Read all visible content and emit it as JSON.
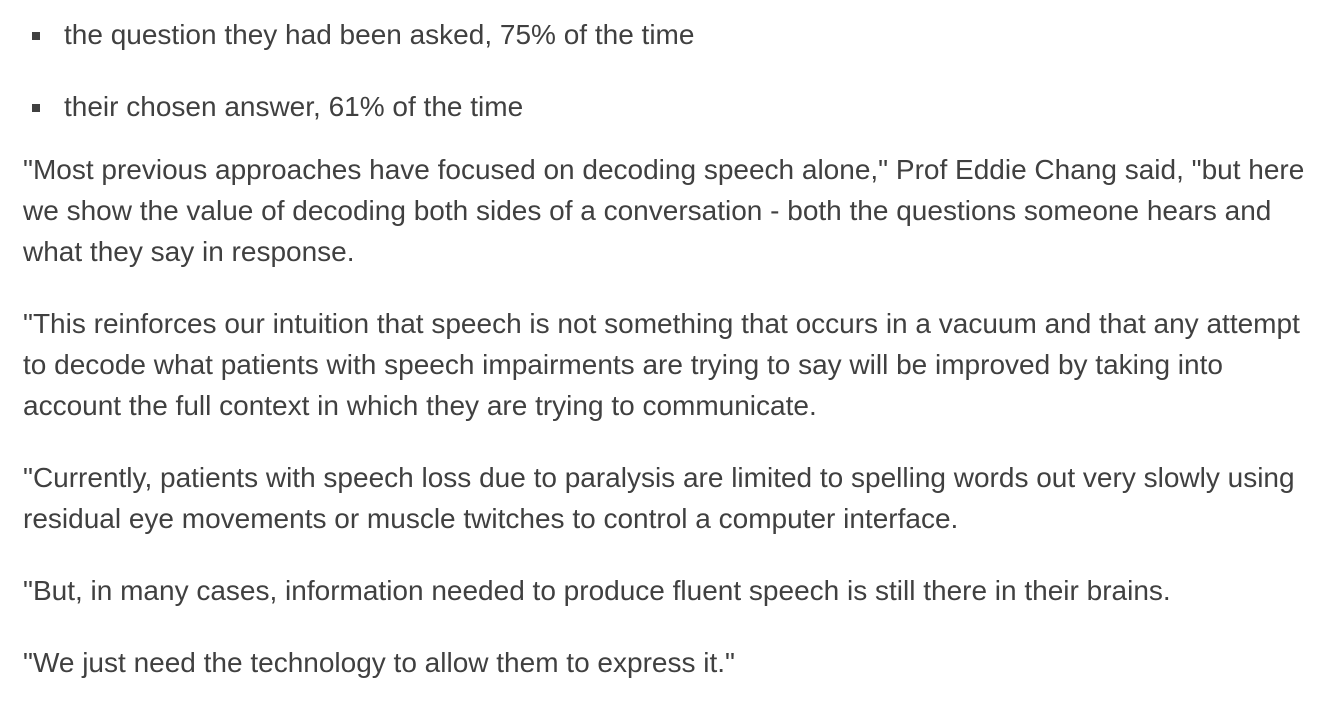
{
  "bullets": [
    {
      "text": "the question they had been asked, 75% of the time"
    },
    {
      "text": "their chosen answer, 61% of the time"
    }
  ],
  "paragraphs": [
    {
      "text": "\"Most previous approaches have focused on decoding speech alone,\" Prof Eddie Chang said, \"but here we show the value of decoding both sides of a conversation - both the questions someone hears and what they say in response."
    },
    {
      "text": "\"This reinforces our intuition that speech is not something that occurs in a vacuum and that any attempt to decode what patients with speech impairments are trying to say will be improved by taking into account the full context in which they are trying to communicate."
    },
    {
      "text": "\"Currently, patients with speech loss due to paralysis are limited to spelling words out very slowly using residual eye movements or muscle twitches to control a computer interface."
    },
    {
      "text": "\"But, in many cases, information needed to produce fluent speech is still there in their brains."
    },
    {
      "text": "\"We just need the technology to allow them to express it.\""
    }
  ]
}
